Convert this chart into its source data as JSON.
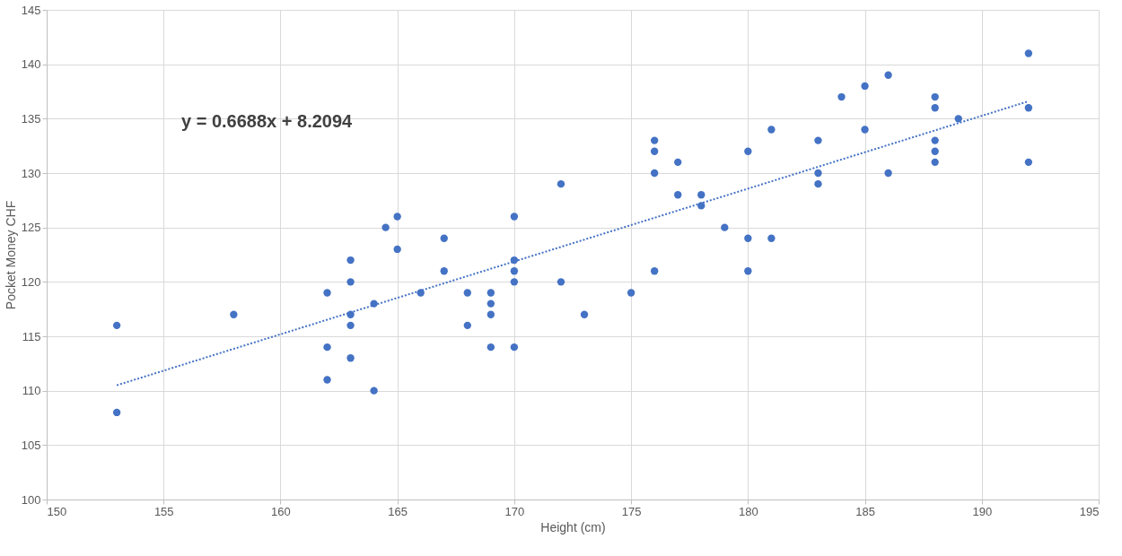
{
  "chart_data": {
    "type": "scatter",
    "xlabel": "Height (cm)",
    "ylabel": "Pocket Money CHF",
    "xlim": [
      150,
      195
    ],
    "xticks": [
      150,
      155,
      160,
      165,
      170,
      175,
      180,
      185,
      190,
      195
    ],
    "ylim": [
      100,
      145
    ],
    "yticks": [
      100,
      105,
      110,
      115,
      120,
      125,
      130,
      135,
      140,
      145
    ],
    "grid": true,
    "annotations": [
      "y = 0.6688x + 8.2094"
    ],
    "series": [
      {
        "color": "#4472c4",
        "marker": "circle",
        "x": [
          153,
          153,
          158,
          162,
          162,
          162,
          163,
          163,
          163,
          163,
          163,
          164,
          164,
          164.5,
          165,
          165,
          166,
          167,
          167,
          168,
          168,
          169,
          169,
          169,
          169,
          170,
          170,
          170,
          170,
          170,
          172,
          172,
          173,
          175,
          176,
          176,
          176,
          176,
          177,
          177,
          178,
          178,
          179,
          180,
          180,
          180,
          181,
          181,
          183,
          183,
          183,
          184,
          185,
          185,
          186,
          186,
          188,
          188,
          188,
          188,
          188,
          189,
          192,
          192,
          192
        ],
        "values": [
          116,
          108,
          117,
          119,
          114,
          111,
          122,
          120,
          117,
          116,
          113,
          118,
          110,
          125,
          126,
          123,
          119,
          124,
          121,
          119,
          116,
          119,
          118,
          117,
          114,
          126,
          122,
          121,
          120,
          114,
          129,
          120,
          117,
          119,
          133,
          132,
          130,
          121,
          131,
          128,
          128,
          127,
          125,
          132,
          124,
          121,
          134,
          124,
          133,
          130,
          129,
          137,
          138,
          134,
          139,
          130,
          137,
          136,
          133,
          132,
          131,
          135,
          141,
          136,
          131
        ]
      },
      {
        "type": "line",
        "color": "#4472c4",
        "line_style": "dotted",
        "marker": "none",
        "x": [
          153,
          192
        ],
        "values": [
          110.5,
          136.6
        ]
      }
    ]
  }
}
